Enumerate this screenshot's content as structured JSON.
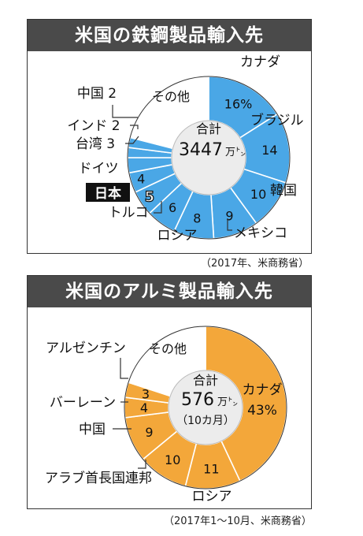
{
  "colors": {
    "steel": "#4aa7e6",
    "aluminum": "#f3a73a",
    "other": "#ffffff",
    "outline": "#333333",
    "title_bg": "#4a4a4a"
  },
  "steel": {
    "title": "米国の鉄鋼製品輸入先",
    "source": "（2017年、米商務省）",
    "center_line1": "合計",
    "center_value": "3447",
    "center_unit": "万㌧",
    "highlight": "日本"
  },
  "aluminum": {
    "title": "米国のアルミ製品輸入先",
    "source": "（2017年1～10月、米商務省）",
    "center_line1": "合計",
    "center_value": "576",
    "center_unit": "万㌧",
    "center_note": "（10カ月）"
  },
  "chart_data": [
    {
      "type": "pie",
      "title": "米国の鉄鋼製品輸入先",
      "unit": "%",
      "total": "3447万㌧",
      "categories": [
        "カナダ",
        "ブラジル",
        "韓国",
        "メキシコ",
        "ロシア",
        "トルコ",
        "日本",
        "ドイツ",
        "台湾",
        "インド",
        "中国",
        "その他"
      ],
      "values": [
        16,
        14,
        10,
        9,
        8,
        6,
        5,
        4,
        3,
        2,
        2,
        21
      ],
      "value_labels": [
        "16%",
        "14",
        "10",
        "9",
        "8",
        "6",
        "5",
        "4",
        "3",
        "2",
        "2",
        ""
      ],
      "category_labels": [
        "カナダ",
        "ブラジル",
        "韓国",
        "メキシコ",
        "ロシア",
        "トルコ",
        "日本",
        "ドイツ",
        "台湾 3",
        "インド 2",
        "中国 2",
        "その他"
      ]
    },
    {
      "type": "pie",
      "title": "米国のアルミ製品輸入先",
      "unit": "%",
      "total": "576万㌧",
      "categories": [
        "カナダ",
        "ロシア",
        "アラブ首長国連邦",
        "中国",
        "バーレーン",
        "アルゼンチン",
        "その他"
      ],
      "values": [
        43,
        11,
        10,
        9,
        4,
        3,
        20
      ],
      "value_labels": [
        "43%",
        "11",
        "10",
        "9",
        "4",
        "3",
        ""
      ],
      "category_labels": [
        "カナダ",
        "ロシア",
        "アラブ首長国連邦",
        "中国",
        "バーレーン",
        "アルゼンチン",
        "その他"
      ]
    }
  ]
}
